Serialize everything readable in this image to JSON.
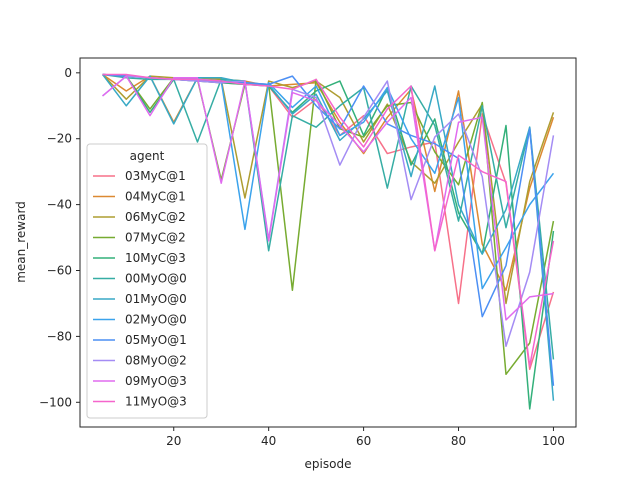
{
  "chart_data": {
    "type": "line",
    "title": "",
    "xlabel": "episode",
    "ylabel": "mean_reward",
    "xlim": [
      0.25,
      104.75
    ],
    "ylim": [
      -107.5,
      4.5
    ],
    "xticks": [
      20,
      40,
      60,
      80,
      100
    ],
    "yticks": [
      0,
      -20,
      -40,
      -60,
      -80,
      -100
    ],
    "ytick_labels": [
      "0",
      "−20",
      "−40",
      "−60",
      "−80",
      "−100"
    ],
    "grid": false,
    "legend": {
      "title": "agent",
      "placement": "center-left"
    },
    "x": [
      5,
      10,
      15,
      20,
      25,
      30,
      35,
      40,
      45,
      50,
      55,
      60,
      65,
      70,
      75,
      80,
      85,
      90,
      95,
      100
    ],
    "series": [
      {
        "name": "03MyC@1",
        "color": "#f77189",
        "values": [
          -0.5,
          -0.8,
          -1.5,
          -2.0,
          -2.5,
          -3.0,
          -3.5,
          -4.0,
          -13.5,
          -8.0,
          -19.0,
          -13.0,
          -24.5,
          -22.5,
          -21.0,
          -70.0,
          -12.5,
          -33.5,
          -90.0,
          -66.5
        ]
      },
      {
        "name": "04MyC@1",
        "color": "#dc8932",
        "values": [
          -0.5,
          -5.5,
          -1.0,
          -15.0,
          -1.5,
          -2.0,
          -2.5,
          -4.0,
          -3.5,
          -3.0,
          -15.0,
          -24.5,
          -13.5,
          -5.0,
          -36.0,
          -5.5,
          -52.0,
          -66.0,
          -35.0,
          -13.5
        ]
      },
      {
        "name": "06MyC@2",
        "color": "#ae9d31",
        "values": [
          -0.5,
          -8.0,
          -1.0,
          -1.5,
          -1.5,
          -2.0,
          -38.0,
          -2.5,
          -4.5,
          -2.5,
          -7.5,
          -21.0,
          -9.5,
          -27.0,
          -33.5,
          -21.0,
          -9.5,
          -70.0,
          -33.0,
          -12.0
        ]
      },
      {
        "name": "07MyC@2",
        "color": "#77ab31",
        "values": [
          -0.5,
          -1.0,
          -11.0,
          -1.5,
          -2.0,
          -32.5,
          -3.5,
          -3.5,
          -66.0,
          -2.0,
          -17.0,
          -19.5,
          -10.0,
          -9.0,
          -24.0,
          -34.0,
          -9.0,
          -91.5,
          -82.0,
          -45.0
        ]
      },
      {
        "name": "10MyC@3",
        "color": "#33b07a",
        "values": [
          -0.5,
          -1.0,
          -12.0,
          -2.0,
          -2.5,
          -3.0,
          -3.5,
          -4.0,
          -12.0,
          -5.5,
          -2.5,
          -19.0,
          -4.5,
          -28.0,
          -14.0,
          -42.5,
          -55.0,
          -16.0,
          -102.0,
          -48.0
        ]
      },
      {
        "name": "00MyO@0",
        "color": "#36ada4",
        "values": [
          -0.5,
          -1.5,
          -2.0,
          -2.0,
          -21.0,
          -2.0,
          -2.5,
          -54.0,
          -13.0,
          -16.5,
          -10.0,
          -4.5,
          -35.0,
          -4.0,
          -16.0,
          -45.0,
          -10.0,
          -47.0,
          -16.5,
          -87.0
        ]
      },
      {
        "name": "01MyO@0",
        "color": "#38a9c5",
        "values": [
          -0.5,
          -10.0,
          -1.0,
          -15.5,
          -1.5,
          -1.5,
          -3.0,
          -3.5,
          -12.5,
          -6.5,
          -20.5,
          -14.0,
          -5.5,
          -31.5,
          -4.0,
          -40.0,
          -55.0,
          -41.5,
          -16.5,
          -99.5
        ]
      },
      {
        "name": "02MyO@0",
        "color": "#3ba3ec",
        "values": [
          -0.5,
          -1.0,
          -1.5,
          -2.0,
          -2.5,
          -2.5,
          -47.5,
          -3.0,
          -10.5,
          -4.0,
          -19.0,
          -15.0,
          -4.5,
          -20.0,
          -30.5,
          -7.5,
          -65.5,
          -53.0,
          -40.0,
          -30.5
        ]
      },
      {
        "name": "05MyO@1",
        "color": "#4c8ff4",
        "values": [
          -0.5,
          -1.0,
          -1.5,
          -2.0,
          -2.0,
          -2.5,
          -3.0,
          -3.5,
          -1.0,
          -10.0,
          -17.0,
          -4.0,
          -15.5,
          -19.0,
          -21.5,
          -26.0,
          -74.0,
          -58.5,
          -17.0,
          -95.0
        ]
      },
      {
        "name": "08MyO@2",
        "color": "#a48cf4",
        "values": [
          -7.0,
          -1.0,
          -1.5,
          -2.0,
          -2.5,
          -3.0,
          -2.5,
          -50.5,
          -5.0,
          -7.5,
          -28.0,
          -13.5,
          -2.5,
          -38.5,
          -19.5,
          -12.5,
          -31.5,
          -83.0,
          -60.5,
          -19.0
        ]
      },
      {
        "name": "09MyO@3",
        "color": "#e06bef",
        "values": [
          -7.0,
          -1.0,
          -13.0,
          -1.5,
          -1.5,
          -33.5,
          -2.5,
          -51.0,
          -6.0,
          -8.5,
          -16.0,
          -24.0,
          -15.0,
          -7.5,
          -54.0,
          -15.0,
          -13.5,
          -75.0,
          -68.0,
          -67.0
        ]
      },
      {
        "name": "11MyO@3",
        "color": "#f565cc",
        "values": [
          -0.5,
          -0.5,
          -1.5,
          -2.0,
          -2.0,
          -2.5,
          -3.5,
          -4.0,
          -5.0,
          -2.0,
          -13.5,
          -22.5,
          -11.0,
          -4.0,
          -54.0,
          -25.0,
          -30.0,
          -33.0,
          -89.0,
          -51.0
        ]
      }
    ]
  }
}
